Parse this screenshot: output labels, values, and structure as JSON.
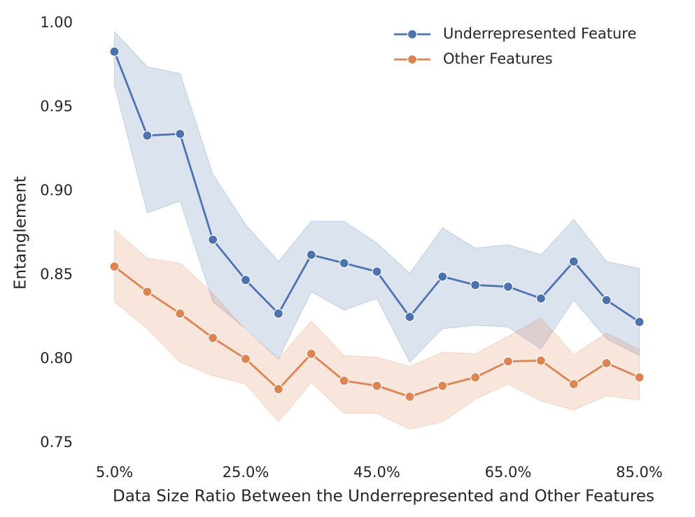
{
  "chart_data": {
    "type": "line",
    "x_label": "Data Size Ratio Between the Underrepresented and Other Features",
    "y_label": "Entanglement",
    "x": [
      5,
      10,
      15,
      20,
      25,
      30,
      35,
      40,
      45,
      50,
      55,
      60,
      65,
      70,
      75,
      80,
      85
    ],
    "xlim": [
      1,
      89
    ],
    "xticks": [
      {
        "value": 5,
        "label": "5.0%"
      },
      {
        "value": 25,
        "label": "25.0%"
      },
      {
        "value": 45,
        "label": "45.0%"
      },
      {
        "value": 65,
        "label": "65.0%"
      },
      {
        "value": 85,
        "label": "85.0%"
      }
    ],
    "ylim": [
      0.74,
      1.005
    ],
    "yticks": [
      {
        "value": 0.75,
        "label": "0.75"
      },
      {
        "value": 0.8,
        "label": "0.80"
      },
      {
        "value": 0.85,
        "label": "0.85"
      },
      {
        "value": 0.9,
        "label": "0.90"
      },
      {
        "value": 0.95,
        "label": "0.95"
      },
      {
        "value": 1.0,
        "label": "1.00"
      }
    ],
    "legend": "upper right",
    "series": [
      {
        "name": "Underrepresented Feature",
        "color": "#4c72b0",
        "values": [
          0.983,
          0.933,
          0.934,
          0.871,
          0.847,
          0.827,
          0.862,
          0.857,
          0.852,
          0.825,
          0.849,
          0.844,
          0.843,
          0.836,
          0.858,
          0.835,
          0.822
        ],
        "upper": [
          0.995,
          0.974,
          0.97,
          0.91,
          0.88,
          0.858,
          0.882,
          0.882,
          0.869,
          0.851,
          0.878,
          0.866,
          0.868,
          0.862,
          0.883,
          0.858,
          0.854
        ],
        "lower": [
          0.963,
          0.887,
          0.894,
          0.834,
          0.818,
          0.8,
          0.84,
          0.829,
          0.836,
          0.798,
          0.818,
          0.82,
          0.819,
          0.806,
          0.835,
          0.812,
          0.802
        ]
      },
      {
        "name": "Other Features",
        "color": "#dd8452",
        "values": [
          0.855,
          0.84,
          0.827,
          0.8125,
          0.8,
          0.782,
          0.803,
          0.787,
          0.784,
          0.7775,
          0.784,
          0.789,
          0.7985,
          0.799,
          0.785,
          0.7975,
          0.789
        ],
        "upper": [
          0.877,
          0.86,
          0.857,
          0.839,
          0.817,
          0.8,
          0.8225,
          0.802,
          0.801,
          0.7955,
          0.804,
          0.803,
          0.8135,
          0.8245,
          0.8025,
          0.8155,
          0.8055
        ],
        "lower": [
          0.834,
          0.818,
          0.798,
          0.79,
          0.785,
          0.7625,
          0.786,
          0.7675,
          0.7675,
          0.758,
          0.7625,
          0.776,
          0.785,
          0.775,
          0.7695,
          0.778,
          0.7755
        ]
      }
    ]
  }
}
